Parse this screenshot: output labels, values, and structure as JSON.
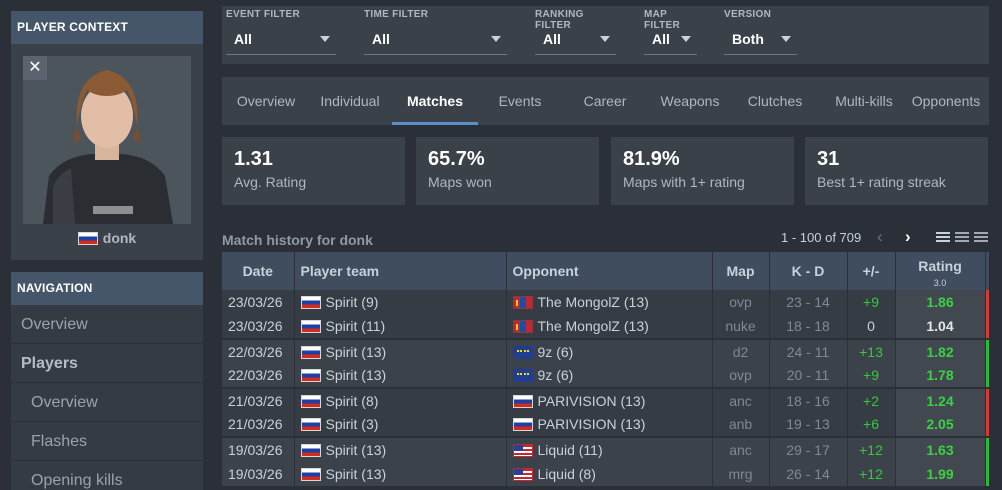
{
  "sidebar": {
    "player_context_title": "PLAYER CONTEXT",
    "player_name": "donk",
    "player_flag": "ru",
    "close_icon": "close-icon",
    "navigation_title": "NAVIGATION",
    "nav_items": [
      "Overview",
      "Players",
      "Overview",
      "Flashes",
      "Opening kills"
    ]
  },
  "filters": [
    {
      "label": "EVENT FILTER",
      "value": "All"
    },
    {
      "label": "TIME FILTER",
      "value": "All"
    },
    {
      "label": "RANKING FILTER",
      "value": "All"
    },
    {
      "label": "MAP FILTER",
      "value": "All"
    },
    {
      "label": "VERSION",
      "value": "Both"
    }
  ],
  "tabs": [
    "Overview",
    "Individual",
    "Matches",
    "Events",
    "Career",
    "Weapons",
    "Clutches",
    "Multi-kills",
    "Opponents"
  ],
  "active_tab": "Matches",
  "stats": [
    {
      "value": "1.31",
      "label": "Avg. Rating"
    },
    {
      "value": "65.7%",
      "label": "Maps won"
    },
    {
      "value": "81.9%",
      "label": "Maps with 1+ rating"
    },
    {
      "value": "31",
      "label": "Best 1+ rating streak"
    }
  ],
  "history": {
    "title": "Match history for donk",
    "pager": "1 - 100 of 709",
    "prev_icon": "chevron-left-icon",
    "next_icon": "chevron-right-icon"
  },
  "table": {
    "headers": {
      "date": "Date",
      "team": "Player team",
      "opponent": "Opponent",
      "map": "Map",
      "kd": "K - D",
      "pm": "+/-",
      "rating": "Rating",
      "rating_sub": "3.0"
    },
    "rows": [
      {
        "date": "23/03/26",
        "team": "Spirit",
        "team_score": "(9)",
        "opp": "The MongolZ",
        "opp_score": "(13)",
        "opp_flag": "mn",
        "map": "ovp",
        "kd": "23 - 14",
        "pm": "+9",
        "rating": "1.86",
        "result": "loss"
      },
      {
        "date": "23/03/26",
        "team": "Spirit",
        "team_score": "(11)",
        "opp": "The MongolZ",
        "opp_score": "(13)",
        "opp_flag": "mn",
        "map": "nuke",
        "kd": "18 - 18",
        "pm": "0",
        "rating": "1.04",
        "result": "loss"
      },
      {
        "date": "22/03/26",
        "team": "Spirit",
        "team_score": "(13)",
        "opp": "9z",
        "opp_score": "(6)",
        "opp_flag": "eu",
        "map": "d2",
        "kd": "24 - 11",
        "pm": "+13",
        "rating": "1.82",
        "result": "win"
      },
      {
        "date": "22/03/26",
        "team": "Spirit",
        "team_score": "(13)",
        "opp": "9z",
        "opp_score": "(6)",
        "opp_flag": "eu",
        "map": "ovp",
        "kd": "20 - 11",
        "pm": "+9",
        "rating": "1.78",
        "result": "win"
      },
      {
        "date": "21/03/26",
        "team": "Spirit",
        "team_score": "(8)",
        "opp": "PARIVISION",
        "opp_score": "(13)",
        "opp_flag": "ru",
        "map": "anc",
        "kd": "18 - 16",
        "pm": "+2",
        "rating": "1.24",
        "result": "loss"
      },
      {
        "date": "21/03/26",
        "team": "Spirit",
        "team_score": "(3)",
        "opp": "PARIVISION",
        "opp_score": "(13)",
        "opp_flag": "ru",
        "map": "anb",
        "kd": "19 - 13",
        "pm": "+6",
        "rating": "2.05",
        "result": "loss"
      },
      {
        "date": "19/03/26",
        "team": "Spirit",
        "team_score": "(13)",
        "opp": "Liquid",
        "opp_score": "(11)",
        "opp_flag": "us",
        "map": "anc",
        "kd": "29 - 17",
        "pm": "+12",
        "rating": "1.63",
        "result": "win"
      },
      {
        "date": "19/03/26",
        "team": "Spirit",
        "team_score": "(13)",
        "opp": "Liquid",
        "opp_score": "(8)",
        "opp_flag": "us",
        "map": "mrg",
        "kd": "26 - 14",
        "pm": "+12",
        "rating": "1.99",
        "result": "win"
      }
    ]
  },
  "colors": {
    "win": "#2fb737",
    "loss": "#d33a3a",
    "accent": "#5b8fc7",
    "good_rating": "#3bd141"
  }
}
